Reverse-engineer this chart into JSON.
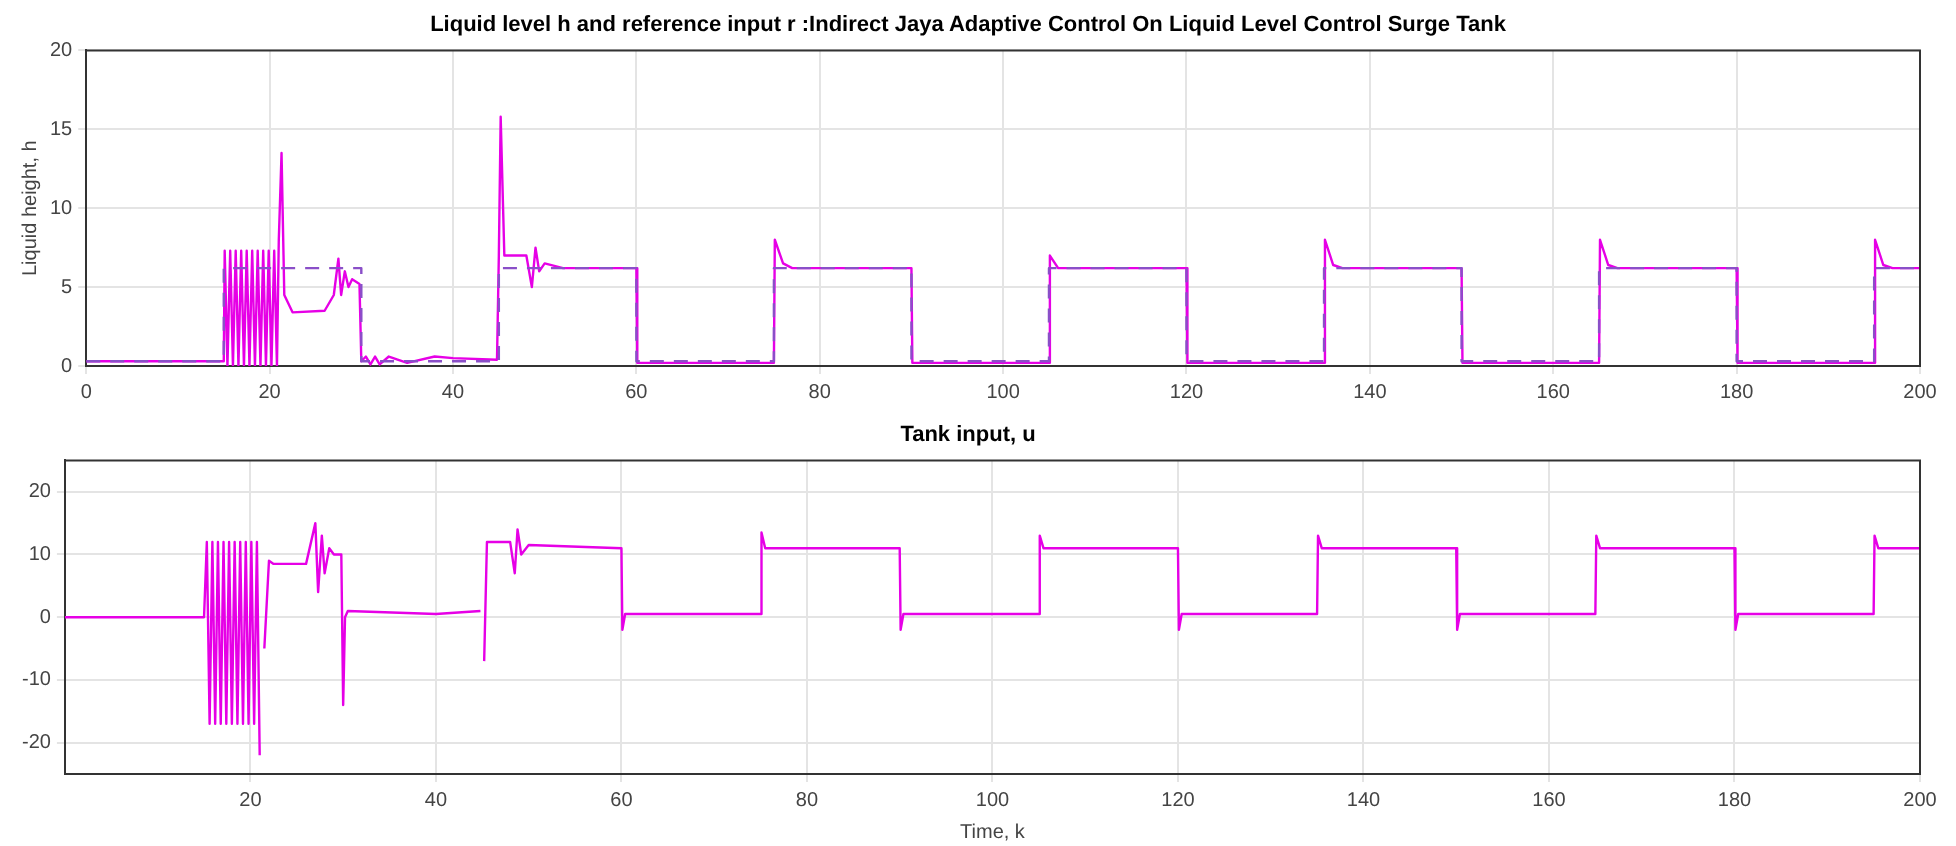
{
  "chart_data": [
    {
      "type": "line",
      "title": "Liquid level h and reference input r :Indirect Jaya Adaptive Control On Liquid Level Control Surge Tank",
      "ylabel": "Liquid height, h",
      "xlim": [
        0,
        200
      ],
      "xticks": [
        0,
        20,
        40,
        60,
        80,
        100,
        120,
        140,
        160,
        180,
        200
      ],
      "ylim": [
        0,
        20
      ],
      "yticks": [
        0,
        5,
        10,
        15,
        20
      ],
      "grid": true,
      "marker": "none",
      "series": [
        {
          "type": "line",
          "color": "#e600e6",
          "line_style": "solid",
          "x": [
            0,
            15,
            15.1,
            15.4,
            15.7,
            16,
            16.3,
            16.6,
            16.9,
            17.2,
            17.5,
            17.8,
            18.1,
            18.4,
            18.7,
            19,
            19.3,
            19.6,
            19.9,
            20.2,
            20.5,
            20.8,
            21,
            21.3,
            21.6,
            22.5,
            26,
            27,
            27.5,
            27.8,
            28.2,
            28.6,
            29,
            29.8,
            30,
            30.5,
            31,
            31.5,
            32,
            33,
            35,
            38,
            40,
            44.8,
            45,
            45.2,
            45.6,
            48,
            48.6,
            49,
            49.4,
            50,
            52,
            60,
            60.1,
            75,
            75.1,
            76,
            77,
            90,
            90.1,
            105,
            105.1,
            106,
            120,
            120.1,
            135,
            135.1,
            136,
            137,
            150,
            150.1,
            165,
            165.1,
            166,
            167,
            180,
            180.1,
            195,
            195.1,
            196,
            197,
            200
          ],
          "values": [
            0.3,
            0.3,
            7.3,
            0,
            7.3,
            0,
            7.3,
            0,
            7.3,
            0,
            7.3,
            0,
            7.3,
            0,
            7.3,
            0,
            7.3,
            0,
            7.3,
            0,
            7.3,
            0,
            8,
            13.5,
            4.5,
            3.4,
            3.5,
            4.5,
            6.8,
            4.5,
            6,
            5,
            5.5,
            5.2,
            0.3,
            0.6,
            0.1,
            0.6,
            0.1,
            0.6,
            0.2,
            0.6,
            0.5,
            0.4,
            7,
            15.8,
            7,
            7,
            5,
            7.5,
            6,
            6.5,
            6.2,
            6.2,
            0.2,
            0.2,
            8,
            6.5,
            6.2,
            6.2,
            0.2,
            0.2,
            7,
            6.2,
            6.2,
            0.2,
            0.2,
            8,
            6.4,
            6.2,
            6.2,
            0.2,
            0.2,
            8,
            6.4,
            6.2,
            6.2,
            0.2,
            0.2,
            8,
            6.4,
            6.2,
            6.2
          ]
        },
        {
          "type": "step",
          "color": "#8a4fc8",
          "line_style": "dashed",
          "x": [
            0,
            15,
            30,
            45,
            60,
            75,
            90,
            105,
            120,
            135,
            150,
            165,
            180,
            195,
            200
          ],
          "values": [
            0.3,
            6.2,
            0.3,
            6.2,
            0.3,
            6.2,
            0.3,
            6.2,
            0.3,
            6.2,
            0.3,
            6.2,
            0.3,
            6.2,
            6.2
          ]
        }
      ]
    },
    {
      "type": "line",
      "title": "Tank input, u",
      "xlabel": "Time, k",
      "xlim": [
        0,
        200
      ],
      "xticks": [
        20,
        40,
        60,
        80,
        100,
        120,
        140,
        160,
        180,
        200
      ],
      "ylim": [
        -25,
        25
      ],
      "yticks": [
        -20,
        -10,
        0,
        10,
        20
      ],
      "grid": true,
      "marker": "none",
      "series": [
        {
          "type": "line",
          "color": "#e600e6",
          "line_style": "solid",
          "x": [
            0,
            15,
            15.3,
            15.6,
            15.9,
            16.2,
            16.5,
            16.8,
            17.1,
            17.4,
            17.7,
            18,
            18.3,
            18.6,
            18.9,
            19.2,
            19.5,
            19.8,
            20.1,
            20.4,
            20.7,
            21,
            21.2,
            21.5,
            22,
            22.5,
            26,
            27,
            27.3,
            27.7,
            28,
            28.5,
            29,
            29.8,
            30,
            30.2,
            30.5,
            40,
            44.8,
            45,
            45.2,
            45.5,
            48,
            48.5,
            48.8,
            49.2,
            50,
            60,
            60.1,
            60.4,
            75,
            75.1,
            75.5,
            90,
            90.1,
            90.4,
            105,
            105.1,
            105.5,
            120,
            120.1,
            120.4,
            135,
            135.1,
            135.5,
            150,
            150.1,
            150.4,
            165,
            165.1,
            165.5,
            180,
            180.1,
            180.4,
            195,
            195.1,
            195.5,
            200
          ],
          "values": [
            0,
            0,
            12,
            -17,
            12,
            -17,
            12,
            -17,
            12,
            -17,
            12,
            -17,
            12,
            -17,
            12,
            -17,
            12,
            -17,
            12,
            -17,
            12,
            -22,
            null,
            -5,
            9,
            8.5,
            8.5,
            15,
            4,
            13,
            7,
            11,
            10,
            10,
            -14,
            0,
            1,
            0.5,
            1,
            null,
            -7,
            12,
            12,
            7,
            14,
            10,
            11.5,
            11,
            -2,
            0.5,
            0.5,
            13.5,
            11,
            11,
            -2,
            0.5,
            0.5,
            13,
            11,
            11,
            -2,
            0.5,
            0.5,
            13,
            11,
            11,
            -2,
            0.5,
            0.5,
            13,
            11,
            11,
            -2,
            0.5,
            0.5,
            13,
            11,
            11
          ]
        }
      ]
    }
  ]
}
